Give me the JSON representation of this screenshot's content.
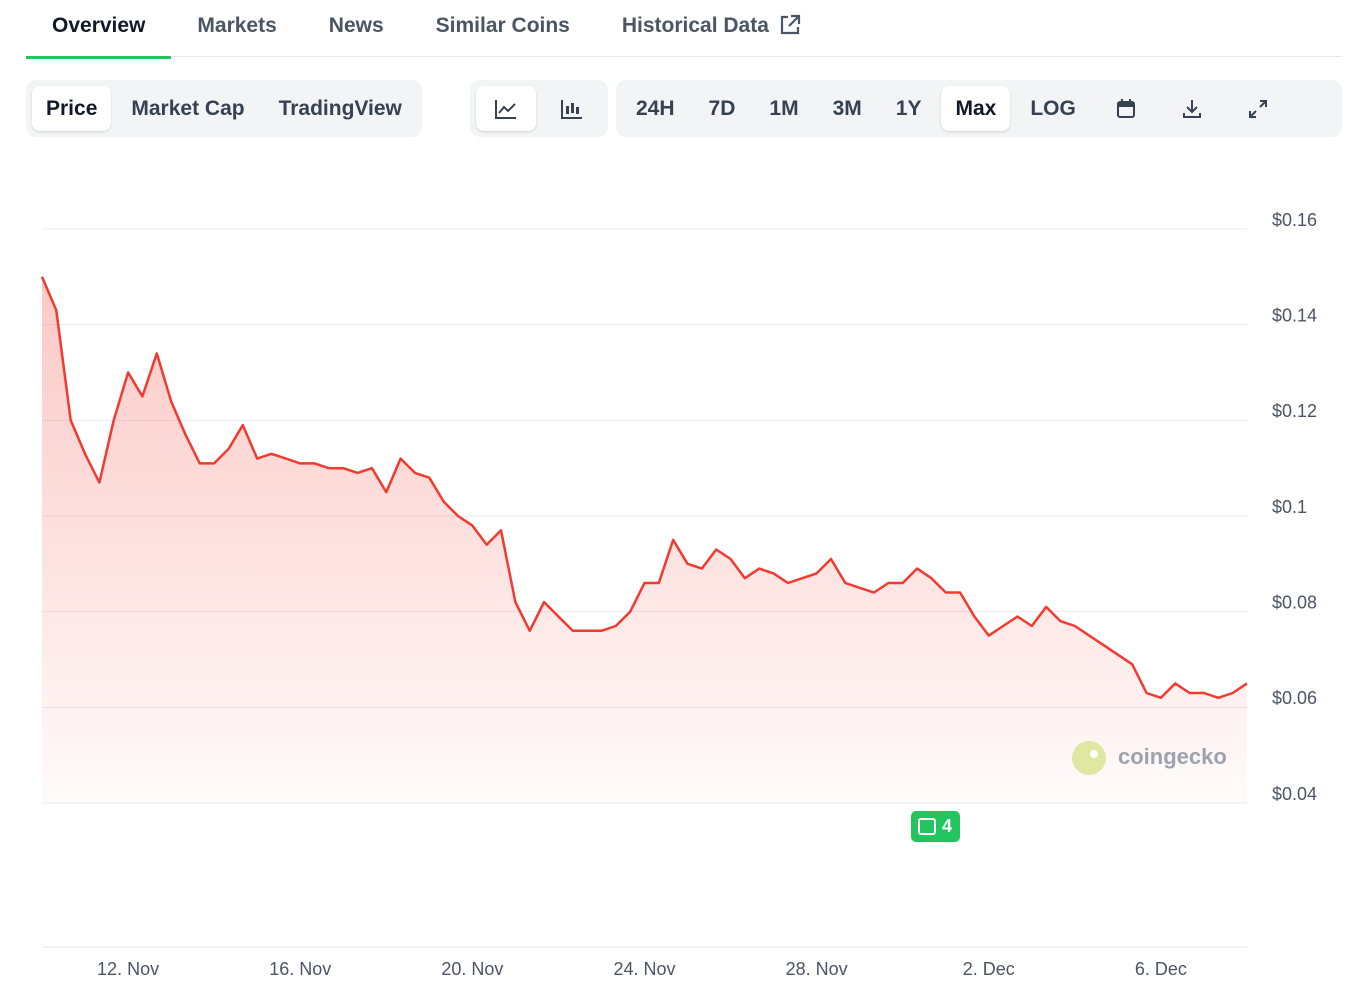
{
  "tabs": [
    "Overview",
    "Markets",
    "News",
    "Similar Coins",
    "Historical Data"
  ],
  "chart_modes": [
    "Price",
    "Market Cap",
    "TradingView"
  ],
  "ranges": [
    "24H",
    "7D",
    "1M",
    "3M",
    "1Y",
    "Max",
    "LOG"
  ],
  "watermark": "coingecko",
  "news_badge": "4",
  "chart_data": {
    "type": "line",
    "color": "#f23a2f",
    "categories": [
      null,
      null,
      null,
      null,
      null,
      null,
      "12. Nov",
      null,
      null,
      null,
      null,
      null,
      null,
      null,
      null,
      null,
      null,
      null,
      "16. Nov",
      null,
      null,
      null,
      null,
      null,
      null,
      null,
      null,
      null,
      null,
      null,
      "20. Nov",
      null,
      null,
      null,
      null,
      null,
      null,
      null,
      null,
      null,
      null,
      null,
      "24. Nov",
      null,
      null,
      null,
      null,
      null,
      null,
      null,
      null,
      null,
      null,
      null,
      "28. Nov",
      null,
      null,
      null,
      null,
      null,
      null,
      null,
      null,
      null,
      null,
      null,
      "2. Dec",
      null,
      null,
      null,
      null,
      null,
      null,
      null,
      null,
      null,
      null,
      null,
      "6. Dec",
      null,
      null,
      null,
      null,
      null,
      null
    ],
    "values": [
      0.15,
      0.143,
      0.12,
      0.113,
      0.107,
      0.12,
      0.13,
      0.125,
      0.134,
      0.124,
      0.117,
      0.111,
      0.111,
      0.114,
      0.119,
      0.112,
      0.113,
      0.112,
      0.111,
      0.111,
      0.11,
      0.11,
      0.109,
      0.11,
      0.105,
      0.112,
      0.109,
      0.108,
      0.103,
      0.1,
      0.098,
      0.094,
      0.097,
      0.082,
      0.076,
      0.082,
      0.079,
      0.076,
      0.076,
      0.076,
      0.077,
      0.08,
      0.086,
      0.086,
      0.095,
      0.09,
      0.089,
      0.093,
      0.091,
      0.087,
      0.089,
      0.088,
      0.086,
      0.087,
      0.088,
      0.091,
      0.086,
      0.085,
      0.084,
      0.086,
      0.086,
      0.089,
      0.087,
      0.084,
      0.084,
      0.079,
      0.075,
      0.077,
      0.079,
      0.077,
      0.081,
      0.078,
      0.077,
      0.075,
      0.073,
      0.071,
      0.069,
      0.063,
      0.062,
      0.065,
      0.063,
      0.063,
      0.062,
      0.063,
      0.065
    ],
    "ylim": [
      0.04,
      0.16
    ],
    "yticks": [
      {
        "value": 0.04,
        "label": "$0.04"
      },
      {
        "value": 0.06,
        "label": "$0.06"
      },
      {
        "value": 0.08,
        "label": "$0.08"
      },
      {
        "value": 0.1,
        "label": "$0.1"
      },
      {
        "value": 0.12,
        "label": "$0.12"
      },
      {
        "value": 0.14,
        "label": "$0.14"
      },
      {
        "value": 0.16,
        "label": "$0.16"
      }
    ],
    "grid": true
  }
}
